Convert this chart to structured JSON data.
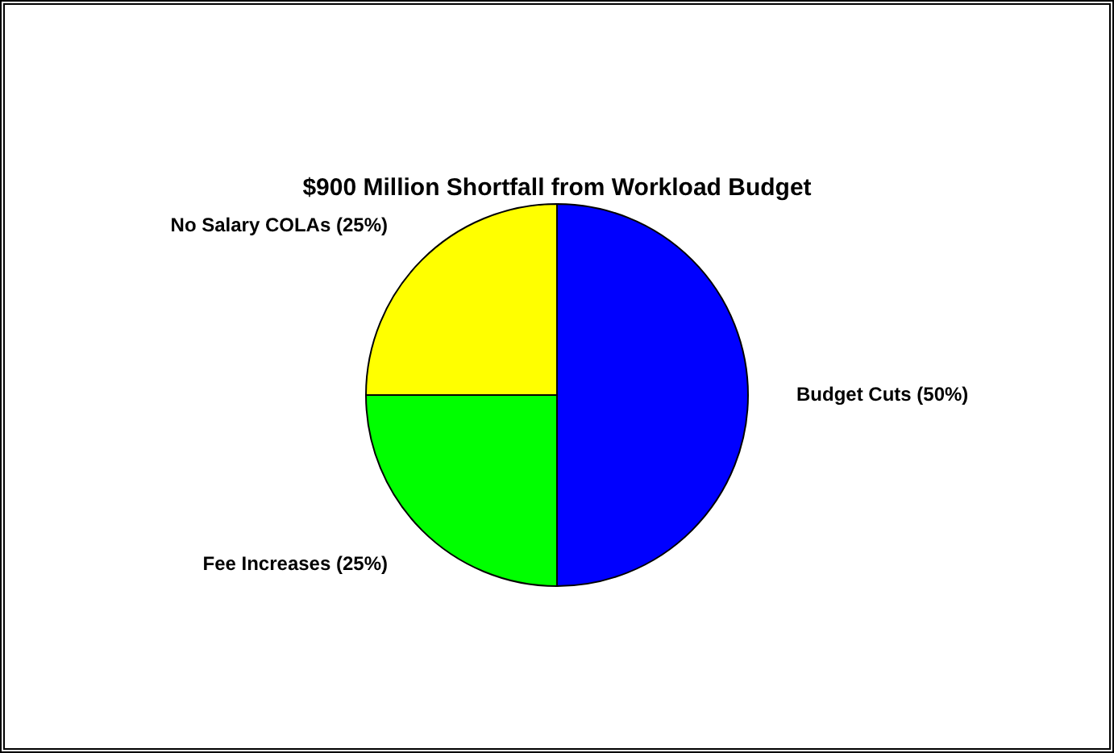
{
  "chart_data": {
    "type": "pie",
    "title": "$900 Million Shortfall from Workload Budget",
    "categories": [
      "Budget Cuts (50%)",
      "Fee Increases (25%)",
      "No Salary COLAs (25%)"
    ],
    "values": [
      50,
      25,
      25
    ],
    "colors": [
      "#0000ff",
      "#00ff00",
      "#ffff00"
    ]
  }
}
